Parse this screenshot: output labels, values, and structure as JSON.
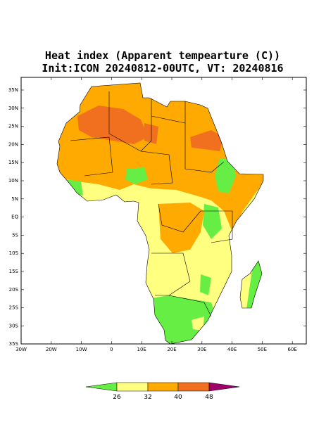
{
  "title": {
    "line1": "Heat index (Apparent tempearture (C))",
    "line2": "Init:ICON 20240812-00UTC, VT: 20240816"
  },
  "map": {
    "lat_labels": [
      "35N",
      "30N",
      "25N",
      "20N",
      "15N",
      "10N",
      "5N",
      "EQ",
      "5S",
      "10S",
      "15S",
      "20S",
      "25S",
      "30S",
      "35S"
    ],
    "lon_labels": [
      "30W",
      "20W",
      "10W",
      "0",
      "10E",
      "20E",
      "30E",
      "40E",
      "50E",
      "60E"
    ]
  },
  "colorbar": {
    "labels": [
      "26",
      "32",
      "40",
      "48"
    ]
  }
}
